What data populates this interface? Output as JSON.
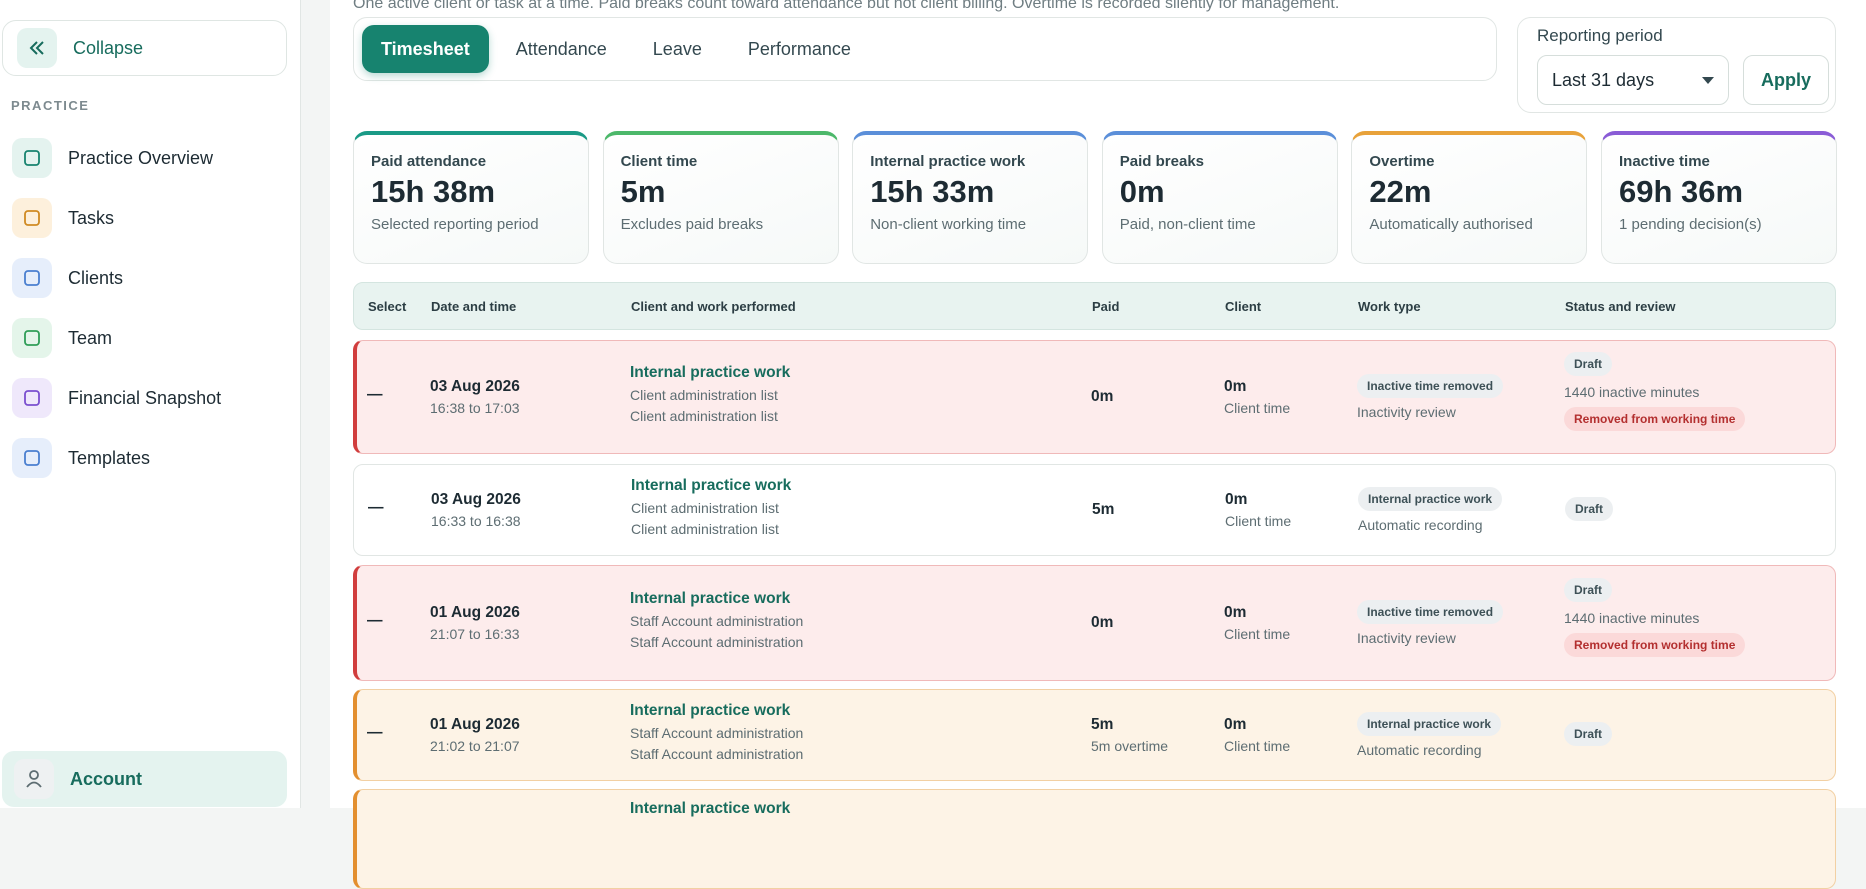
{
  "sidebar": {
    "collapse": "Collapse",
    "section": "PRACTICE",
    "nav": [
      "Practice Overview",
      "Tasks",
      "Clients",
      "Team",
      "Financial Snapshot",
      "Templates"
    ],
    "account": "Account"
  },
  "intro": "One active client or task at a time. Paid breaks count toward attendance but not client billing. Overtime is recorded silently for management.",
  "tabs": [
    "Timesheet",
    "Attendance",
    "Leave",
    "Performance"
  ],
  "reporting": {
    "label": "Reporting period",
    "value": "Last 31 days",
    "apply": "Apply"
  },
  "cards": [
    {
      "label": "Paid attendance",
      "value": "15h 38m",
      "note": "Selected reporting period",
      "color": "#1a9a86"
    },
    {
      "label": "Client time",
      "value": "5m",
      "note": "Excludes paid breaks",
      "color": "#4cb86a"
    },
    {
      "label": "Internal practice work",
      "value": "15h 33m",
      "note": "Non-client working time",
      "color": "#5b8fd9"
    },
    {
      "label": "Paid breaks",
      "value": "0m",
      "note": "Paid, non-client time",
      "color": "#5b8fd9"
    },
    {
      "label": "Overtime",
      "value": "22m",
      "note": "Automatically authorised",
      "color": "#e8a23a"
    },
    {
      "label": "Inactive time",
      "value": "69h 36m",
      "note": "1 pending decision(s)",
      "color": "#8a5cd6"
    }
  ],
  "table": {
    "headers": [
      "Select",
      "Date and time",
      "Client and work performed",
      "Paid",
      "Client",
      "Work type",
      "Status and review"
    ],
    "rows": [
      {
        "tone": "red",
        "select": "—",
        "date": "03 Aug 2026",
        "time": "16:38 to 17:03",
        "title": "Internal practice work",
        "details": [
          "Client administration list",
          "Client administration list"
        ],
        "paid": "0m",
        "client": "0m",
        "client_note": "Client time",
        "work_badge": "Inactive time removed",
        "work_note": "Inactivity review",
        "status_badge": "Draft",
        "status_note": "1440 inactive minutes",
        "status_flag": "Removed from working time"
      },
      {
        "tone": "white",
        "select": "—",
        "date": "03 Aug 2026",
        "time": "16:33 to 16:38",
        "title": "Internal practice work",
        "details": [
          "Client administration list",
          "Client administration list"
        ],
        "paid": "5m",
        "client": "0m",
        "client_note": "Client time",
        "work_badge": "Internal practice work",
        "work_note": "Automatic recording",
        "status_badge": "Draft"
      },
      {
        "tone": "red",
        "select": "—",
        "date": "01 Aug 2026",
        "time": "21:07 to 16:33",
        "title": "Internal practice work",
        "details": [
          "Staff Account administration",
          "Staff Account administration"
        ],
        "paid": "0m",
        "client": "0m",
        "client_note": "Client time",
        "work_badge": "Inactive time removed",
        "work_note": "Inactivity review",
        "status_badge": "Draft",
        "status_note": "1440 inactive minutes",
        "status_flag": "Removed from working time"
      },
      {
        "tone": "orange",
        "select": "—",
        "date": "01 Aug 2026",
        "time": "21:02 to 21:07",
        "title": "Internal practice work",
        "details": [
          "Staff Account administration",
          "Staff Account administration"
        ],
        "paid": "5m",
        "paid_note": "5m overtime",
        "client": "0m",
        "client_note": "Client time",
        "work_badge": "Internal practice work",
        "work_note": "Automatic recording",
        "status_badge": "Draft"
      },
      {
        "tone": "orange",
        "title": "Internal practice work"
      }
    ]
  }
}
